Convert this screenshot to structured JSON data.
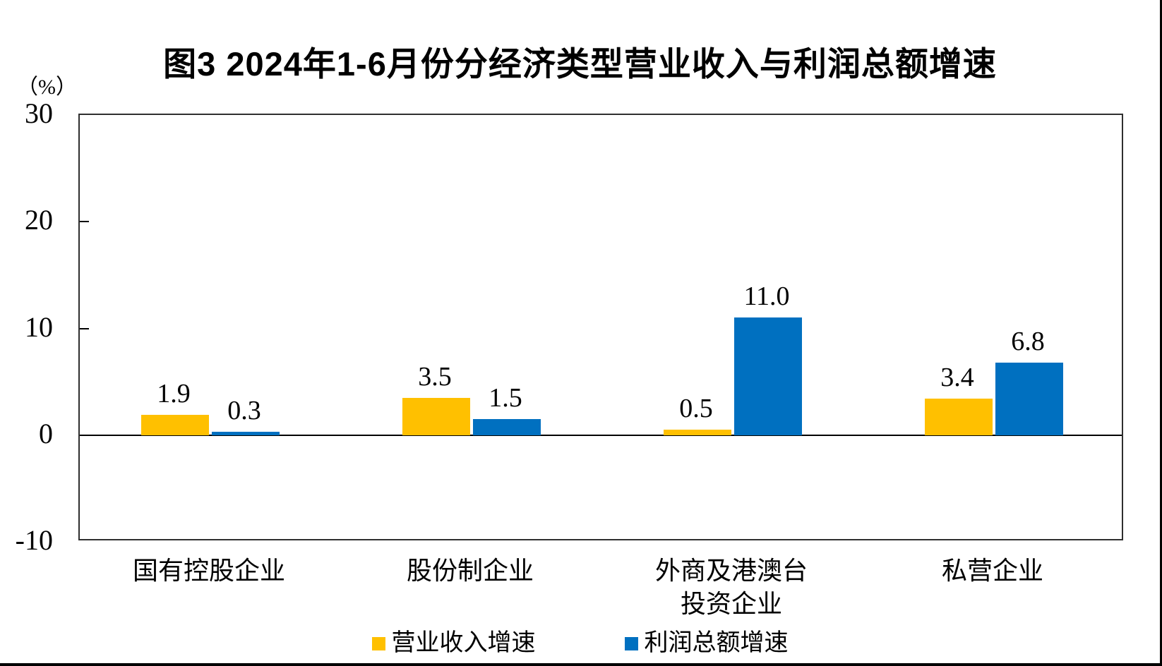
{
  "page": {
    "background": "#ffffff",
    "frame_color": "#000000"
  },
  "chart_data": {
    "type": "bar",
    "title": "图3  2024年1-6月份分经济类型营业收入与利润总额增速",
    "ylabel": "（%）",
    "xlabel": "",
    "ylim": [
      -10,
      30
    ],
    "yticks": [
      30,
      20,
      10,
      0,
      -10
    ],
    "grid": false,
    "legend_position": "bottom",
    "axis_color": "#000000",
    "categories": [
      "国有控股企业",
      "股份制企业",
      "外商及港澳台\n投资企业",
      "私营企业"
    ],
    "series": [
      {
        "name": "营业收入增速",
        "key": "revenue-growth",
        "color": "#FFC000",
        "values": [
          1.9,
          3.5,
          0.5,
          3.4
        ],
        "labels": [
          "1.9",
          "3.5",
          "0.5",
          "3.4"
        ]
      },
      {
        "name": "利润总额增速",
        "key": "profit-growth",
        "color": "#0070C0",
        "values": [
          0.3,
          1.5,
          11.0,
          6.8
        ],
        "labels": [
          "0.3",
          "1.5",
          "11.0",
          "6.8"
        ]
      }
    ]
  }
}
